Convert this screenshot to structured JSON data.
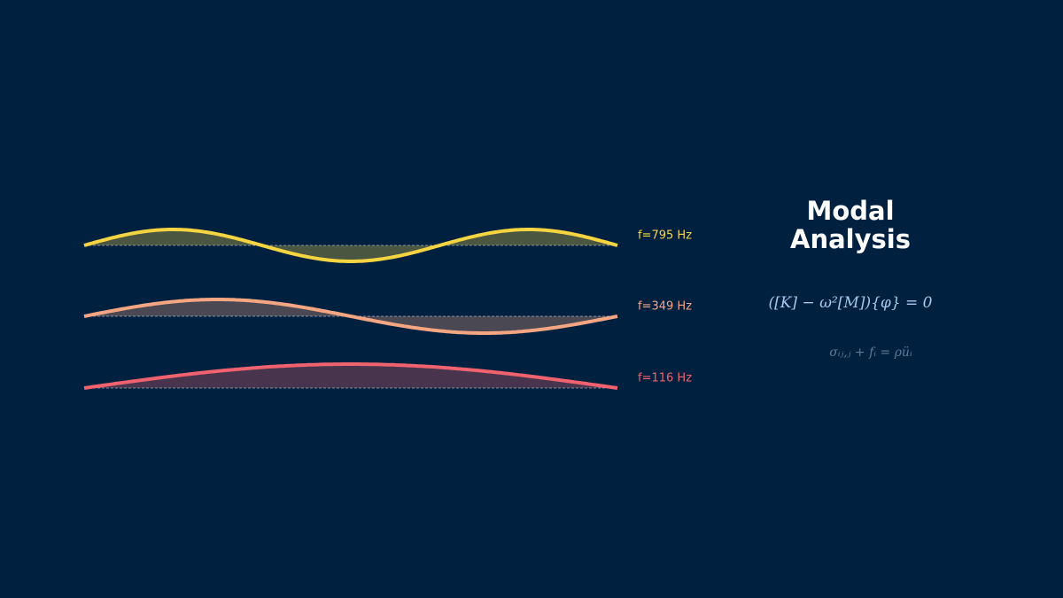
{
  "title": "Modal Analysis",
  "modes": [
    {
      "label": "f=795 Hz"
    },
    {
      "label": "f=349 Hz"
    },
    {
      "label": "f=116 Hz"
    }
  ],
  "equations": [
    "([K] − ω²[M]){φ} = 0",
    "σᵢⱼ,ⱼ + fᵢ = ρüᵢ"
  ]
}
